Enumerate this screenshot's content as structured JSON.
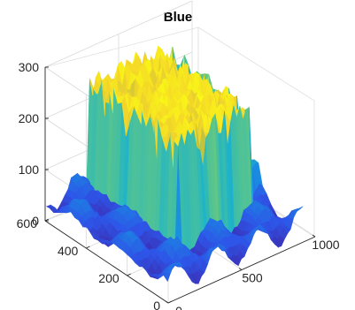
{
  "chart_data": {
    "type": "surface",
    "title": "Blue",
    "colormap": "parula",
    "colors": {
      "low": "#3e26a8",
      "mid": "#23b6b5",
      "high": "#f9fb15"
    },
    "x_ticks": [
      "0",
      "500",
      "1000"
    ],
    "y_ticks": [
      "0",
      "200",
      "400",
      "600"
    ],
    "z_ticks": [
      "0",
      "100",
      "200",
      "300"
    ],
    "xlim": [
      0,
      1000
    ],
    "ylim": [
      0,
      600
    ],
    "zlim": [
      0,
      300
    ],
    "grid": true,
    "surface": {
      "plateau_x_range": [
        300,
        800
      ],
      "plateau_y_range": [
        150,
        600
      ],
      "plateau_level": 230,
      "background_level_range": [
        5,
        60
      ]
    }
  }
}
